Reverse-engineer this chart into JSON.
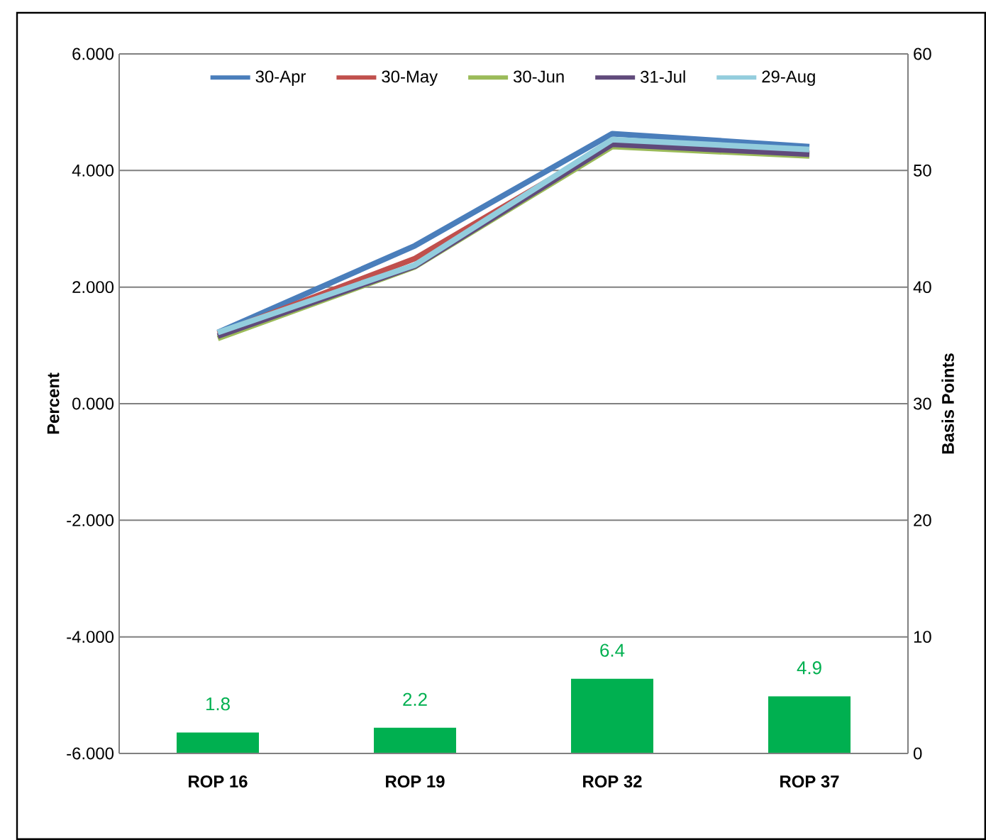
{
  "chart_data": {
    "type": "line",
    "ylabel": "Percent",
    "y2label": "Basis Points",
    "categories": [
      "ROP 16",
      "ROP 19",
      "ROP 32",
      "ROP 37"
    ],
    "series": [
      {
        "name": "30-Apr",
        "color": "#4a7ebb",
        "values": [
          1.22,
          2.71,
          4.63,
          4.41
        ]
      },
      {
        "name": "30-May",
        "color": "#c0504d",
        "values": [
          1.2,
          2.49,
          4.47,
          4.3
        ]
      },
      {
        "name": "30-Jun",
        "color": "#9bbb59",
        "values": [
          1.12,
          2.35,
          4.41,
          4.25
        ]
      },
      {
        "name": "31-Jul",
        "color": "#604a7b",
        "values": [
          1.16,
          2.36,
          4.45,
          4.28
        ]
      },
      {
        "name": "29-Aug",
        "color": "#93cddd",
        "values": [
          1.22,
          2.38,
          4.53,
          4.36
        ]
      },
      {
        "type": "bar",
        "axis": "y2",
        "color": "#00b050",
        "values": [
          1.8,
          2.2,
          6.4,
          4.9
        ],
        "value_labels": [
          "1.8",
          "2.2",
          "6.4",
          "4.9"
        ]
      }
    ],
    "ylim": [
      -6,
      6
    ],
    "yticks": [
      {
        "value": -6,
        "label": "-6.000"
      },
      {
        "value": -4,
        "label": "-4.000"
      },
      {
        "value": -2,
        "label": "-2.000"
      },
      {
        "value": 0,
        "label": "0.000"
      },
      {
        "value": 2,
        "label": "2.000"
      },
      {
        "value": 4,
        "label": "4.000"
      },
      {
        "value": 6,
        "label": "6.000"
      }
    ],
    "y2lim": [
      0,
      60
    ],
    "y2ticks": [
      0,
      10,
      20,
      30,
      40,
      50,
      60
    ],
    "grid": "y",
    "legend": "top",
    "marker": "none",
    "line_style": "solid"
  }
}
